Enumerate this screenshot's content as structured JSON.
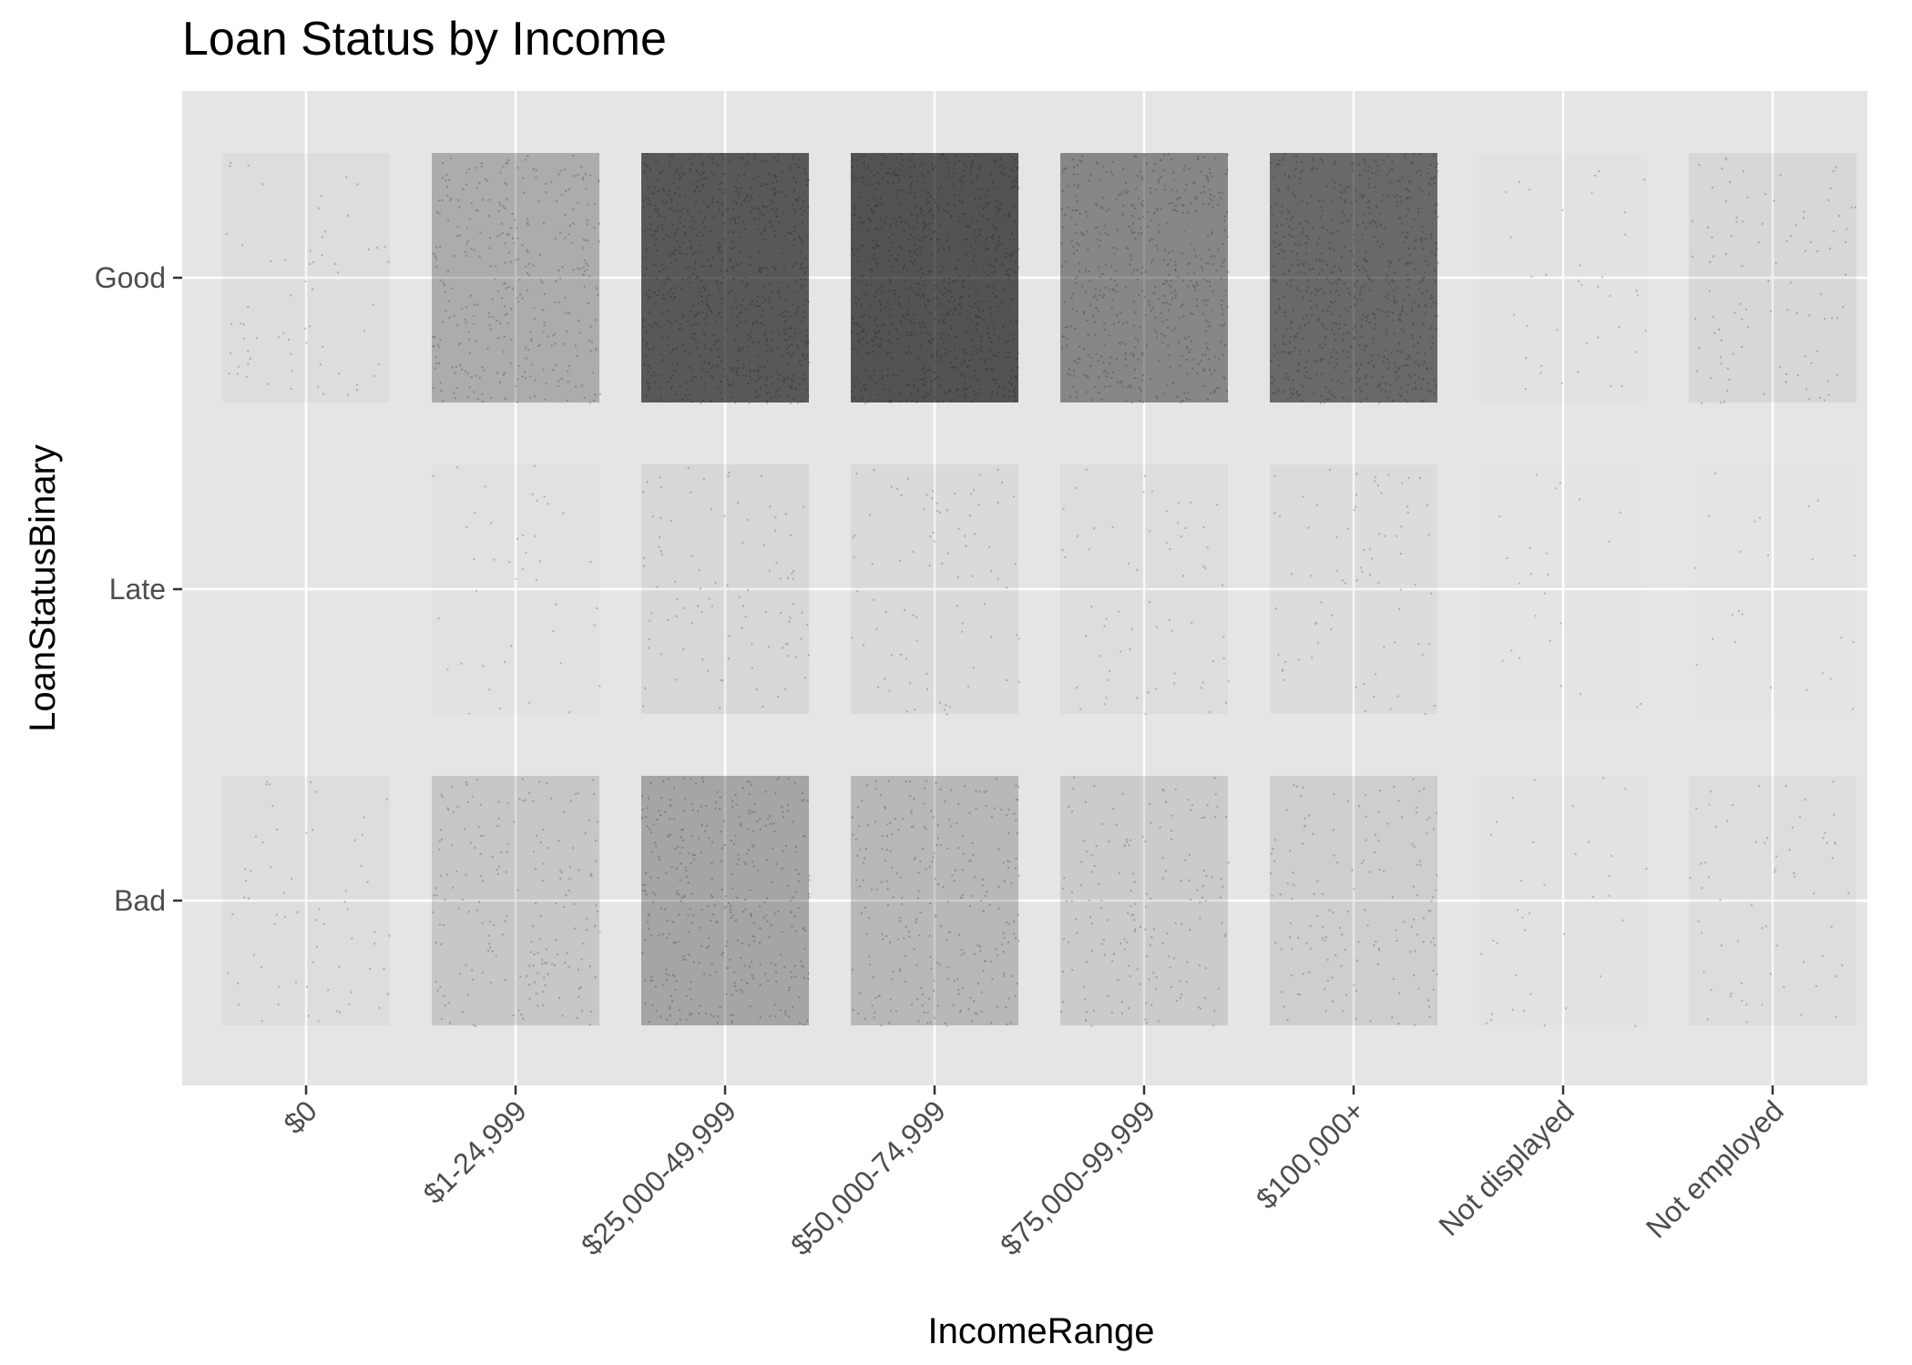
{
  "chart_data": {
    "type": "scatter",
    "title": "Loan Status by Income",
    "xlabel": "IncomeRange",
    "ylabel": "LoanStatusBinary",
    "categories": [
      "$0",
      "$1-24,999",
      "$25,000-49,999",
      "$50,000-74,999",
      "$75,000-99,999",
      "$100,000+",
      "Not displayed",
      "Not employed"
    ],
    "y_categories": [
      "Good",
      "Late",
      "Bad"
    ],
    "jitter": true,
    "point_color": "#000000",
    "panel_color": "#e5e5e5",
    "grid": true,
    "legend": "none",
    "density": [
      {
        "x": "$0",
        "y": "Good",
        "level": 0.04
      },
      {
        "x": "$1-24,999",
        "y": "Good",
        "level": 0.3
      },
      {
        "x": "$25,000-49,999",
        "y": "Good",
        "level": 0.75
      },
      {
        "x": "$50,000-74,999",
        "y": "Good",
        "level": 0.78
      },
      {
        "x": "$75,000-99,999",
        "y": "Good",
        "level": 0.5
      },
      {
        "x": "$100,000+",
        "y": "Good",
        "level": 0.66
      },
      {
        "x": "Not displayed",
        "y": "Good",
        "level": 0.015
      },
      {
        "x": "Not employed",
        "y": "Good",
        "level": 0.07
      },
      {
        "x": "$0",
        "y": "Late",
        "level": 0.0
      },
      {
        "x": "$1-24,999",
        "y": "Late",
        "level": 0.02
      },
      {
        "x": "$25,000-49,999",
        "y": "Late",
        "level": 0.07
      },
      {
        "x": "$50,000-74,999",
        "y": "Late",
        "level": 0.06
      },
      {
        "x": "$75,000-99,999",
        "y": "Late",
        "level": 0.04
      },
      {
        "x": "$100,000+",
        "y": "Late",
        "level": 0.05
      },
      {
        "x": "Not displayed",
        "y": "Late",
        "level": 0.004
      },
      {
        "x": "Not employed",
        "y": "Late",
        "level": 0.004
      },
      {
        "x": "$0",
        "y": "Bad",
        "level": 0.04
      },
      {
        "x": "$1-24,999",
        "y": "Bad",
        "level": 0.16
      },
      {
        "x": "$25,000-49,999",
        "y": "Bad",
        "level": 0.34
      },
      {
        "x": "$50,000-74,999",
        "y": "Bad",
        "level": 0.24
      },
      {
        "x": "$75,000-99,999",
        "y": "Bad",
        "level": 0.14
      },
      {
        "x": "$100,000+",
        "y": "Bad",
        "level": 0.12
      },
      {
        "x": "Not displayed",
        "y": "Bad",
        "level": 0.015
      },
      {
        "x": "Not employed",
        "y": "Bad",
        "level": 0.04
      }
    ]
  }
}
